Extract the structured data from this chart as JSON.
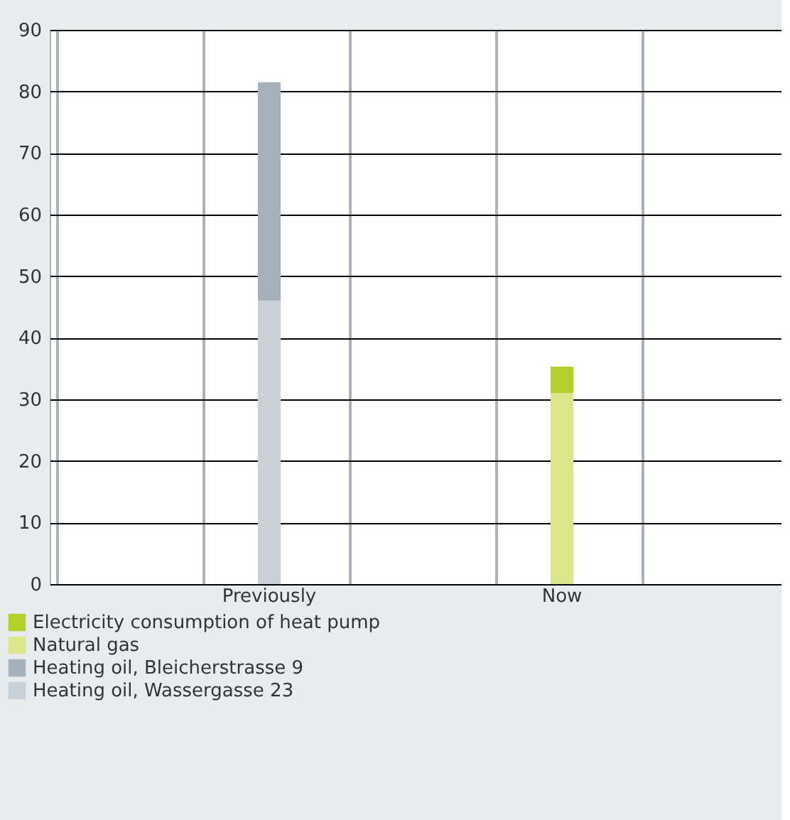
{
  "chart_data": {
    "type": "bar",
    "stacked": true,
    "categories": [
      null,
      "Previously",
      null,
      "Now",
      null
    ],
    "series": [
      {
        "name": "Heating oil, Wassergasse 23",
        "color": "#c8d0d8",
        "values": [
          null,
          46,
          null,
          null,
          null
        ]
      },
      {
        "name": "Heating oil, Bleicherstrasse 9",
        "color": "#a5b0b8",
        "values": [
          null,
          35.5,
          null,
          null,
          null
        ]
      },
      {
        "name": "Natural gas",
        "color": "#dbe58a",
        "values": [
          null,
          null,
          null,
          31,
          null
        ]
      },
      {
        "name": "Electricity consumption of heat pump",
        "color": "#b5cf2a",
        "values": [
          null,
          null,
          null,
          4.3,
          null
        ]
      }
    ],
    "ylim": [
      0,
      90
    ],
    "yticks": [
      0,
      10,
      20,
      30,
      40,
      50,
      60,
      70,
      80,
      90
    ],
    "grid": true,
    "legend": "bottom left"
  }
}
